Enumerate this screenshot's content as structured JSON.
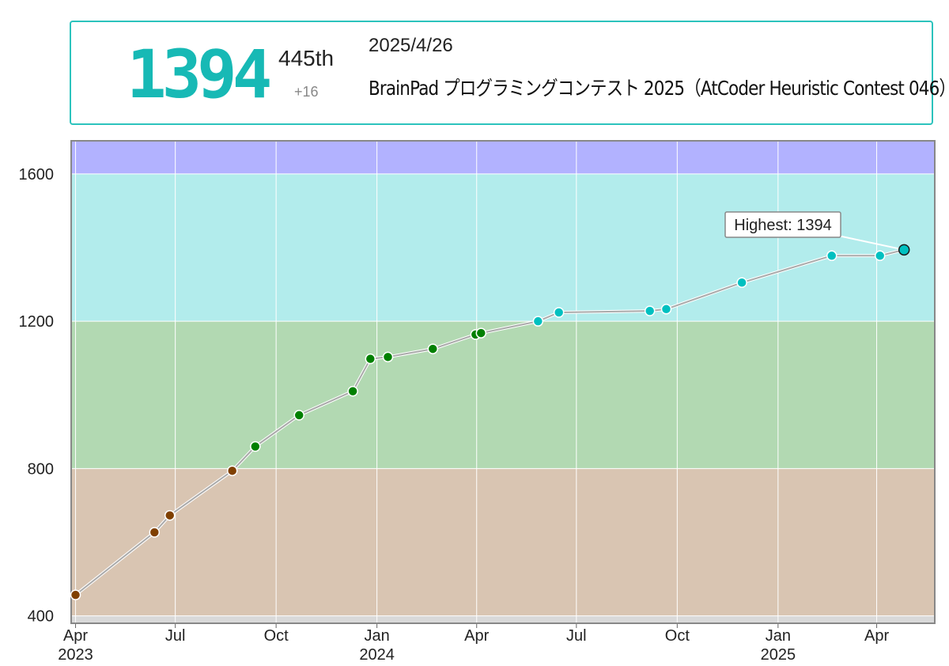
{
  "header": {
    "rating": "1394",
    "rank": "445th",
    "diff": "+16",
    "date": "2025/4/26",
    "contest": "BrainPad プログラミングコンテスト 2025（AtCoder Heuristic Contest 046）"
  },
  "chart_data": {
    "type": "line",
    "title": "",
    "xlabel": "",
    "ylabel": "",
    "ylim": [
      380,
      1690
    ],
    "y_ticks": [
      400,
      800,
      1200,
      1600
    ],
    "x_range": [
      "2023-03-28",
      "2025-05-24"
    ],
    "x_ticks": [
      {
        "date": "2023-04-01",
        "label": "Apr",
        "year": "2023"
      },
      {
        "date": "2023-07-01",
        "label": "Jul",
        "year": ""
      },
      {
        "date": "2023-10-01",
        "label": "Oct",
        "year": ""
      },
      {
        "date": "2024-01-01",
        "label": "Jan",
        "year": "2024"
      },
      {
        "date": "2024-04-01",
        "label": "Apr",
        "year": ""
      },
      {
        "date": "2024-07-01",
        "label": "Jul",
        "year": ""
      },
      {
        "date": "2024-10-01",
        "label": "Oct",
        "year": ""
      },
      {
        "date": "2025-01-01",
        "label": "Jan",
        "year": "2025"
      },
      {
        "date": "2025-04-01",
        "label": "Apr",
        "year": ""
      }
    ],
    "bands": [
      {
        "from": 0,
        "to": 400,
        "color": "#d9d9d9"
      },
      {
        "from": 400,
        "to": 800,
        "color": "#d9c5b2"
      },
      {
        "from": 800,
        "to": 1200,
        "color": "#b2d9b2"
      },
      {
        "from": 1200,
        "to": 1600,
        "color": "#b2ecec"
      },
      {
        "from": 1600,
        "to": 2000,
        "color": "#b2b2ff"
      }
    ],
    "series": [
      {
        "points": [
          {
            "x": "2023-04-01",
            "y": 457
          },
          {
            "x": "2023-06-12",
            "y": 627
          },
          {
            "x": "2023-06-26",
            "y": 673
          },
          {
            "x": "2023-08-22",
            "y": 794
          },
          {
            "x": "2023-09-12",
            "y": 860
          },
          {
            "x": "2023-10-22",
            "y": 945
          },
          {
            "x": "2023-12-10",
            "y": 1010
          },
          {
            "x": "2023-12-26",
            "y": 1098
          },
          {
            "x": "2024-01-11",
            "y": 1103
          },
          {
            "x": "2024-02-21",
            "y": 1125
          },
          {
            "x": "2024-03-31",
            "y": 1164
          },
          {
            "x": "2024-04-05",
            "y": 1168
          },
          {
            "x": "2024-05-27",
            "y": 1200
          },
          {
            "x": "2024-06-15",
            "y": 1224
          },
          {
            "x": "2024-09-06",
            "y": 1228
          },
          {
            "x": "2024-09-21",
            "y": 1233
          },
          {
            "x": "2024-11-29",
            "y": 1305
          },
          {
            "x": "2025-02-19",
            "y": 1378
          },
          {
            "x": "2025-04-04",
            "y": 1378
          },
          {
            "x": "2025-04-26",
            "y": 1394
          }
        ]
      }
    ],
    "annotation": {
      "label": "Highest: 1394",
      "x": "2025-04-26",
      "y": 1394
    }
  },
  "colors": {
    "card_border": "#2cc3bd",
    "rating_text": "#17b9b5",
    "brown": "#804000",
    "green": "#008000",
    "cyan": "#00c0c0",
    "line": "#aaaaaa",
    "frame": "#888888"
  }
}
